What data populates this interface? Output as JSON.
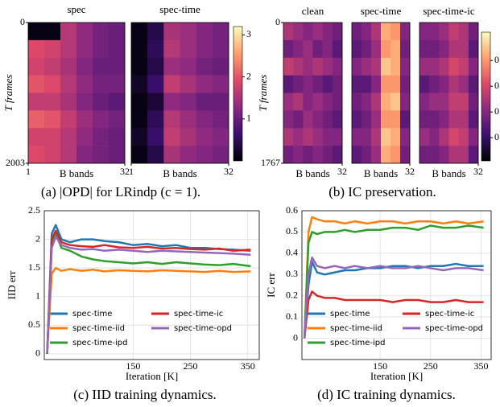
{
  "chart_data": [
    {
      "type": "heatmap",
      "caption": "(a) |OPD| for LRindp (c = 1).",
      "ylabel": "T frames",
      "ylim": [
        0,
        2003
      ],
      "yticks": [
        0,
        2003
      ],
      "xlim": [
        1,
        32
      ],
      "xticks": [
        1,
        32
      ],
      "clim": [
        0,
        3.2
      ],
      "cticks": [
        1,
        2,
        3
      ],
      "panels": [
        {
          "title": "spec",
          "xlabel": "B bands",
          "values": [
            [
              0.1,
              0.1,
              1.6,
              1.3,
              1.1,
              1.0
            ],
            [
              1.9,
              1.8,
              1.6,
              1.3,
              1.1,
              1.0
            ],
            [
              1.8,
              1.7,
              1.5,
              1.2,
              1.0,
              1.0
            ],
            [
              2.0,
              1.9,
              1.6,
              1.3,
              1.1,
              1.1
            ],
            [
              1.7,
              1.7,
              1.5,
              1.2,
              1.0,
              0.9
            ],
            [
              2.1,
              2.0,
              1.7,
              1.4,
              1.2,
              1.1
            ],
            [
              1.8,
              1.8,
              1.6,
              1.3,
              1.1,
              1.0
            ],
            [
              1.9,
              1.8,
              1.6,
              1.2,
              1.1,
              1.0
            ]
          ]
        },
        {
          "title": "spec-time",
          "xlabel": "B bands",
          "values": [
            [
              0.1,
              0.4,
              1.5,
              1.4,
              1.2,
              1.1
            ],
            [
              0.1,
              0.5,
              1.6,
              1.4,
              1.2,
              1.1
            ],
            [
              0.1,
              0.4,
              1.4,
              1.3,
              1.1,
              1.0
            ],
            [
              0.2,
              0.6,
              1.7,
              1.5,
              1.3,
              1.2
            ],
            [
              0.1,
              0.3,
              1.3,
              1.2,
              1.0,
              1.0
            ],
            [
              0.1,
              0.5,
              1.6,
              1.4,
              1.2,
              1.1
            ],
            [
              0.2,
              0.6,
              1.7,
              1.5,
              1.3,
              1.2
            ],
            [
              0.1,
              0.4,
              1.5,
              1.3,
              1.2,
              1.1
            ]
          ]
        }
      ]
    },
    {
      "type": "heatmap",
      "caption": "(b) IC preservation.",
      "ylabel": "T frames",
      "ylim": [
        0,
        1767
      ],
      "yticks": [
        0,
        1767
      ],
      "xlim": [
        1,
        32
      ],
      "xticks": [
        32
      ],
      "clim": [
        0.02,
        1.02
      ],
      "cticks": [
        {
          "value": 0.8,
          "label": "0"
        },
        {
          "value": 0.6,
          "label": "0"
        },
        {
          "value": 0.4,
          "label": "0"
        },
        {
          "value": 0.2,
          "label": "0"
        }
      ],
      "panels": [
        {
          "title": "clean",
          "xlabel": "B bands",
          "values": [
            [
              0.5,
              0.45,
              0.4,
              0.45,
              0.4,
              0.35
            ],
            [
              0.35,
              0.4,
              0.45,
              0.35,
              0.4,
              0.3
            ],
            [
              0.55,
              0.5,
              0.45,
              0.5,
              0.45,
              0.4
            ],
            [
              0.3,
              0.35,
              0.4,
              0.35,
              0.3,
              0.35
            ],
            [
              0.45,
              0.5,
              0.4,
              0.45,
              0.4,
              0.35
            ],
            [
              0.4,
              0.35,
              0.45,
              0.4,
              0.35,
              0.3
            ],
            [
              0.5,
              0.45,
              0.5,
              0.45,
              0.4,
              0.4
            ],
            [
              0.35,
              0.4,
              0.35,
              0.4,
              0.35,
              0.3
            ]
          ]
        },
        {
          "title": "spec-time",
          "xlabel": "B bands",
          "values": [
            [
              0.35,
              0.4,
              0.5,
              0.85,
              0.8,
              0.4
            ],
            [
              0.3,
              0.35,
              0.45,
              0.8,
              0.85,
              0.35
            ],
            [
              0.4,
              0.45,
              0.5,
              0.9,
              0.85,
              0.4
            ],
            [
              0.3,
              0.3,
              0.4,
              0.8,
              0.8,
              0.35
            ],
            [
              0.35,
              0.4,
              0.5,
              0.85,
              0.9,
              0.4
            ],
            [
              0.3,
              0.35,
              0.45,
              0.8,
              0.8,
              0.3
            ],
            [
              0.4,
              0.4,
              0.5,
              0.9,
              0.85,
              0.4
            ],
            [
              0.3,
              0.35,
              0.45,
              0.85,
              0.8,
              0.35
            ]
          ]
        },
        {
          "title": "spec-time-ic",
          "xlabel": "B bands",
          "values": [
            [
              0.4,
              0.4,
              0.45,
              0.55,
              0.5,
              0.35
            ],
            [
              0.35,
              0.35,
              0.4,
              0.5,
              0.5,
              0.3
            ],
            [
              0.45,
              0.45,
              0.5,
              0.6,
              0.55,
              0.4
            ],
            [
              0.3,
              0.35,
              0.4,
              0.5,
              0.45,
              0.3
            ],
            [
              0.4,
              0.45,
              0.45,
              0.55,
              0.55,
              0.35
            ],
            [
              0.35,
              0.35,
              0.4,
              0.5,
              0.5,
              0.3
            ],
            [
              0.45,
              0.4,
              0.5,
              0.6,
              0.55,
              0.4
            ],
            [
              0.35,
              0.35,
              0.4,
              0.5,
              0.5,
              0.3
            ]
          ]
        }
      ]
    },
    {
      "type": "line",
      "caption": "(c) IID training dynamics.",
      "xlabel": "Iteration [K]",
      "ylabel": "IID err",
      "grid": true,
      "xlim": [
        -5,
        370
      ],
      "xticks": [
        150,
        250,
        350
      ],
      "ylim": [
        -0.1,
        2.5
      ],
      "yticks": [
        0,
        0.5,
        1,
        1.5,
        2,
        2.5
      ],
      "x": [
        0,
        8,
        15,
        25,
        40,
        60,
        80,
        100,
        125,
        150,
        175,
        200,
        225,
        250,
        275,
        300,
        325,
        355
      ],
      "series": [
        {
          "name": "spec-time",
          "color": "#1f77b4",
          "values": [
            0,
            2.1,
            2.25,
            2.0,
            1.95,
            2.0,
            2.0,
            1.97,
            1.95,
            1.9,
            1.92,
            1.88,
            1.9,
            1.85,
            1.85,
            1.83,
            1.82,
            1.8
          ]
        },
        {
          "name": "spec-time-iid",
          "color": "#ff7f0e",
          "values": [
            0,
            1.4,
            1.5,
            1.45,
            1.48,
            1.45,
            1.47,
            1.44,
            1.46,
            1.45,
            1.44,
            1.46,
            1.45,
            1.44,
            1.43,
            1.45,
            1.43,
            1.44
          ]
        },
        {
          "name": "spec-time-ipd",
          "color": "#2ca02c",
          "values": [
            0,
            1.9,
            2.1,
            1.85,
            1.8,
            1.7,
            1.65,
            1.62,
            1.6,
            1.58,
            1.6,
            1.57,
            1.6,
            1.58,
            1.56,
            1.55,
            1.57,
            1.53
          ]
        },
        {
          "name": "spec-time-ic",
          "color": "#d62728",
          "values": [
            0,
            2.0,
            2.15,
            1.95,
            1.9,
            1.88,
            1.87,
            1.9,
            1.86,
            1.85,
            1.87,
            1.84,
            1.85,
            1.83,
            1.82,
            1.84,
            1.8,
            1.82
          ]
        },
        {
          "name": "spec-time-opd",
          "color": "#9467bd",
          "values": [
            0,
            1.85,
            2.05,
            1.9,
            1.85,
            1.82,
            1.83,
            1.8,
            1.82,
            1.8,
            1.78,
            1.8,
            1.79,
            1.78,
            1.77,
            1.76,
            1.75,
            1.73
          ]
        }
      ]
    },
    {
      "type": "line",
      "caption": "(d) IC training dynamics.",
      "xlabel": "Iteration [K]",
      "ylabel": "IC err",
      "grid": true,
      "xlim": [
        -5,
        370
      ],
      "xticks": [
        150,
        250,
        350
      ],
      "ylim": [
        -0.1,
        0.6
      ],
      "yticks": [
        0,
        0.1,
        0.2,
        0.3,
        0.4,
        0.5,
        0.6
      ],
      "x": [
        0,
        8,
        15,
        25,
        40,
        60,
        80,
        100,
        125,
        150,
        175,
        200,
        225,
        250,
        275,
        300,
        325,
        355
      ],
      "series": [
        {
          "name": "spec-time",
          "color": "#1f77b4",
          "values": [
            0,
            0.25,
            0.36,
            0.31,
            0.3,
            0.31,
            0.32,
            0.32,
            0.33,
            0.33,
            0.34,
            0.34,
            0.33,
            0.34,
            0.34,
            0.35,
            0.34,
            0.34
          ]
        },
        {
          "name": "spec-time-iid",
          "color": "#ff7f0e",
          "values": [
            0,
            0.5,
            0.57,
            0.56,
            0.55,
            0.55,
            0.54,
            0.55,
            0.54,
            0.55,
            0.55,
            0.54,
            0.55,
            0.55,
            0.54,
            0.55,
            0.54,
            0.55
          ]
        },
        {
          "name": "spec-time-ipd",
          "color": "#2ca02c",
          "values": [
            0,
            0.45,
            0.5,
            0.49,
            0.5,
            0.5,
            0.51,
            0.5,
            0.51,
            0.51,
            0.52,
            0.52,
            0.51,
            0.53,
            0.52,
            0.52,
            0.53,
            0.52
          ]
        },
        {
          "name": "spec-time-ic",
          "color": "#d62728",
          "values": [
            0,
            0.18,
            0.22,
            0.2,
            0.19,
            0.19,
            0.18,
            0.18,
            0.18,
            0.18,
            0.17,
            0.18,
            0.18,
            0.17,
            0.17,
            0.18,
            0.17,
            0.17
          ]
        },
        {
          "name": "spec-time-opd",
          "color": "#9467bd",
          "values": [
            0,
            0.3,
            0.38,
            0.34,
            0.33,
            0.34,
            0.33,
            0.34,
            0.33,
            0.34,
            0.33,
            0.33,
            0.34,
            0.33,
            0.32,
            0.33,
            0.33,
            0.32
          ]
        }
      ]
    }
  ]
}
